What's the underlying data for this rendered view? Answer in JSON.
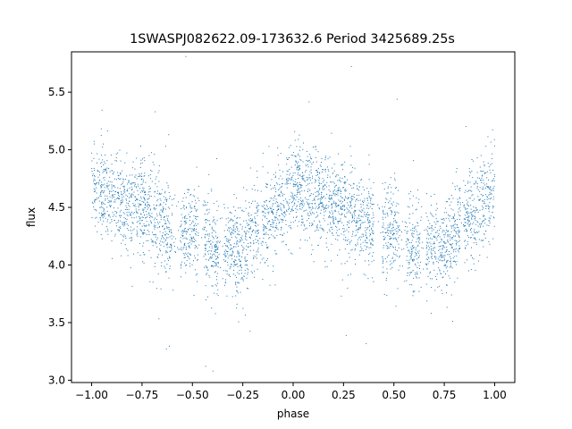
{
  "chart_data": {
    "type": "scatter",
    "title": "1SWASPJ082622.09-173632.6 Period 3425689.25s",
    "xlabel": "phase",
    "ylabel": "flux",
    "xlim": [
      -1.1,
      1.1
    ],
    "ylim": [
      2.98,
      5.85
    ],
    "xticks": [
      -1.0,
      -0.75,
      -0.5,
      -0.25,
      0.0,
      0.25,
      0.5,
      0.75,
      1.0
    ],
    "xtick_labels": [
      "−1.00",
      "−0.75",
      "−0.50",
      "−0.25",
      "0.00",
      "0.25",
      "0.50",
      "0.75",
      "1.00"
    ],
    "yticks": [
      3.0,
      3.5,
      4.0,
      4.5,
      5.0,
      5.5
    ],
    "ytick_labels": [
      "3.0",
      "3.5",
      "4.0",
      "4.5",
      "5.0",
      "5.5"
    ],
    "grid": false,
    "marker_color": "#1f77b4",
    "series": [
      {
        "phase_curve": [
          {
            "x": -1.0,
            "y": 4.68
          },
          {
            "x": -0.95,
            "y": 4.65
          },
          {
            "x": -0.9,
            "y": 4.6
          },
          {
            "x": -0.85,
            "y": 4.55
          },
          {
            "x": -0.8,
            "y": 4.52
          },
          {
            "x": -0.75,
            "y": 4.5
          },
          {
            "x": -0.7,
            "y": 4.45
          },
          {
            "x": -0.65,
            "y": 4.38
          },
          {
            "x": -0.6,
            "y": 4.32
          },
          {
            "x": -0.55,
            "y": 4.28
          },
          {
            "x": -0.5,
            "y": 4.3
          },
          {
            "x": -0.45,
            "y": 4.22
          },
          {
            "x": -0.4,
            "y": 4.15
          },
          {
            "x": -0.35,
            "y": 4.15
          },
          {
            "x": -0.3,
            "y": 4.2
          },
          {
            "x": -0.25,
            "y": 4.1
          },
          {
            "x": -0.2,
            "y": 4.32
          },
          {
            "x": -0.15,
            "y": 4.38
          },
          {
            "x": -0.1,
            "y": 4.45
          },
          {
            "x": -0.05,
            "y": 4.52
          },
          {
            "x": 0.0,
            "y": 4.68
          },
          {
            "x": 0.05,
            "y": 4.65
          },
          {
            "x": 0.1,
            "y": 4.6
          },
          {
            "x": 0.15,
            "y": 4.55
          },
          {
            "x": 0.2,
            "y": 4.52
          },
          {
            "x": 0.25,
            "y": 4.5
          },
          {
            "x": 0.3,
            "y": 4.45
          },
          {
            "x": 0.35,
            "y": 4.38
          },
          {
            "x": 0.4,
            "y": 4.32
          },
          {
            "x": 0.45,
            "y": 4.28
          },
          {
            "x": 0.5,
            "y": 4.3
          },
          {
            "x": 0.55,
            "y": 4.22
          },
          {
            "x": 0.6,
            "y": 4.15
          },
          {
            "x": 0.65,
            "y": 4.15
          },
          {
            "x": 0.7,
            "y": 4.2
          },
          {
            "x": 0.75,
            "y": 4.1
          },
          {
            "x": 0.8,
            "y": 4.32
          },
          {
            "x": 0.85,
            "y": 4.38
          },
          {
            "x": 0.9,
            "y": 4.45
          },
          {
            "x": 0.95,
            "y": 4.52
          },
          {
            "x": 1.0,
            "y": 4.68
          }
        ],
        "scatter_sd": 0.2,
        "density_per_phase": 2200,
        "observing_gaps": [
          {
            "from": -0.6,
            "to": -0.56
          },
          {
            "from": -0.47,
            "to": -0.44
          },
          {
            "from": -0.37,
            "to": -0.34
          },
          {
            "from": -0.17,
            "to": -0.155
          },
          {
            "from": 0.4,
            "to": 0.44
          },
          {
            "from": 0.53,
            "to": 0.56
          },
          {
            "from": 0.63,
            "to": 0.66
          },
          {
            "from": 0.83,
            "to": 0.845
          }
        ]
      }
    ]
  }
}
